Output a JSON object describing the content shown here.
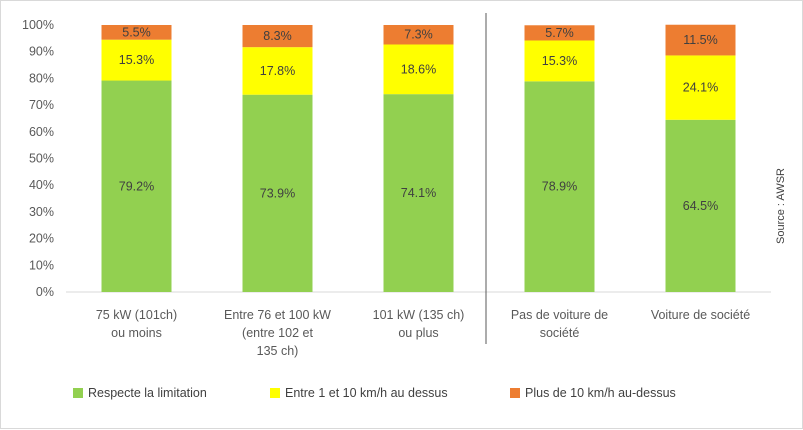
{
  "chart_data": {
    "type": "bar",
    "stacked": true,
    "categories": [
      [
        "75 kW (101ch)",
        "ou moins"
      ],
      [
        "Entre 76 et 100 kW",
        "(entre 102 et",
        "135 ch)"
      ],
      [
        "101 kW (135 ch)",
        "ou plus"
      ],
      [
        "Pas de voiture de",
        "société"
      ],
      [
        "Voiture de société"
      ]
    ],
    "series": [
      {
        "name": "Respecte la limitation",
        "color": "#92d050",
        "values": [
          79.2,
          73.9,
          74.1,
          78.9,
          64.5
        ]
      },
      {
        "name": "Entre 1 et 10 km/h au dessus",
        "color": "#ffff00",
        "values": [
          15.3,
          17.8,
          18.6,
          15.3,
          24.1
        ]
      },
      {
        "name": "Plus de 10 km/h au-dessus",
        "color": "#ed7d31",
        "values": [
          5.5,
          8.3,
          7.3,
          5.7,
          11.5
        ]
      }
    ],
    "value_suffix": "%",
    "ylim": [
      0,
      100
    ],
    "yticks": [
      "0%",
      "10%",
      "20%",
      "30%",
      "40%",
      "50%",
      "60%",
      "70%",
      "80%",
      "90%",
      "100%"
    ],
    "separator_after_category": 3,
    "legend_position": "bottom",
    "source_note": "Source : AWSR",
    "grid": false
  }
}
